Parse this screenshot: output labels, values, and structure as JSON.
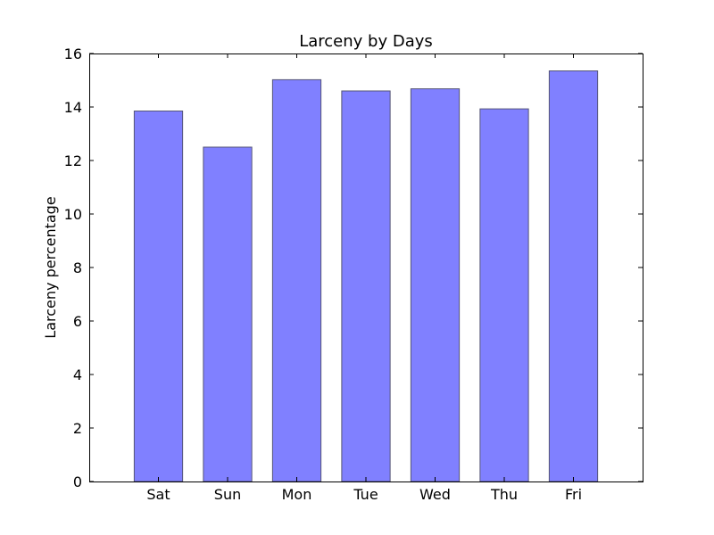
{
  "chart_data": {
    "type": "bar",
    "title": "Larceny by Days",
    "xlabel": "",
    "ylabel": "Larceny percentage",
    "categories": [
      "Sat",
      "Sun",
      "Mon",
      "Tue",
      "Wed",
      "Thu",
      "Fri"
    ],
    "values": [
      13.85,
      12.5,
      15.02,
      14.6,
      14.68,
      13.93,
      15.35
    ],
    "ylim": [
      0,
      16
    ],
    "yticks": [
      "0",
      "2",
      "4",
      "6",
      "8",
      "10",
      "12",
      "14",
      "16"
    ],
    "grid": false,
    "legend": "none",
    "bar_color": "#8080ff",
    "bar_edge_color": "#555577"
  }
}
